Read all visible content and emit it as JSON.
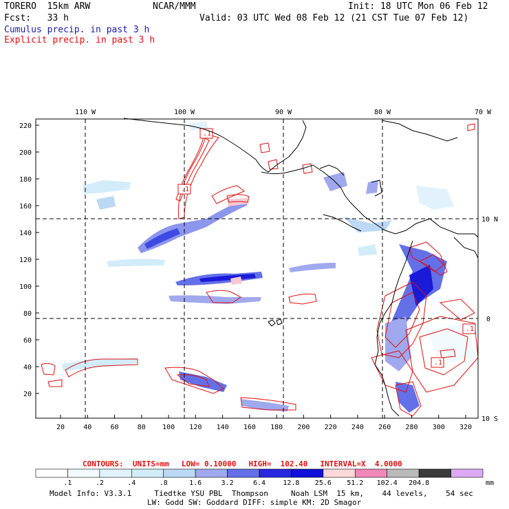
{
  "header": {
    "model": "TORERO  15km ARW",
    "org": "NCAR/MMM",
    "init": "Init: 18 UTC Mon 06 Feb 12",
    "fcst": "Fcst:   33 h",
    "valid": "Valid: 03 UTC Wed 08 Feb 12 (21 CST Tue 07 Feb 12)",
    "field1": "Cumulus precip. in past 3 h",
    "field2": "Explicit precip. in past 3 h"
  },
  "map": {
    "lon_labels": [
      "110 W",
      "100 W",
      "90 W",
      "80 W",
      "70 W"
    ],
    "lat_labels": [
      "10 N",
      "0",
      "10 S"
    ],
    "y_ticks": [
      "20",
      "40",
      "60",
      "80",
      "100",
      "120",
      "140",
      "160",
      "180",
      "200",
      "220"
    ],
    "x_ticks": [
      "20",
      "40",
      "60",
      "80",
      "100",
      "120",
      "140",
      "160",
      "180",
      "200",
      "220",
      "240",
      "260",
      "280",
      "300",
      "320"
    ],
    "contour_labels": [
      ".1",
      ".1",
      ".1",
      ".1"
    ],
    "colors": {
      "land": "#000000",
      "grid": "#000000",
      "contour": "#e01010"
    }
  },
  "contours_info": {
    "units": "CONTOURS:  UNITS=mm",
    "low": "LOW= 0.10000",
    "high": "HIGH=  102.40",
    "interval": "INTERVAL=X  4.0000"
  },
  "colorbar": {
    "labels": [
      ".1",
      ".2",
      ".4",
      ".8",
      "1.6",
      "3.2",
      "6.4",
      "12.8",
      "25.6",
      "51.2",
      "102.4",
      "204.8"
    ],
    "unit": "mm",
    "colors": [
      "#ffffff",
      "#f2fafe",
      "#e2f2fc",
      "#d2ecfa",
      "#bcd8f4",
      "#a0a8ee",
      "#6470e8",
      "#2828e0",
      "#1010d8",
      "#fcd8d8",
      "#f088b8",
      "#bababa",
      "#3a3a3a",
      "#dcaaf4"
    ]
  },
  "footer": {
    "line1": "Model Info: V3.3.1     Tiedtke YSU PBL  Thompson     Noah LSM  15 km,    44 levels,    54 sec",
    "line2": "LW: Godd SW: Goddard DIFF: simple KM: 2D Smagor"
  }
}
